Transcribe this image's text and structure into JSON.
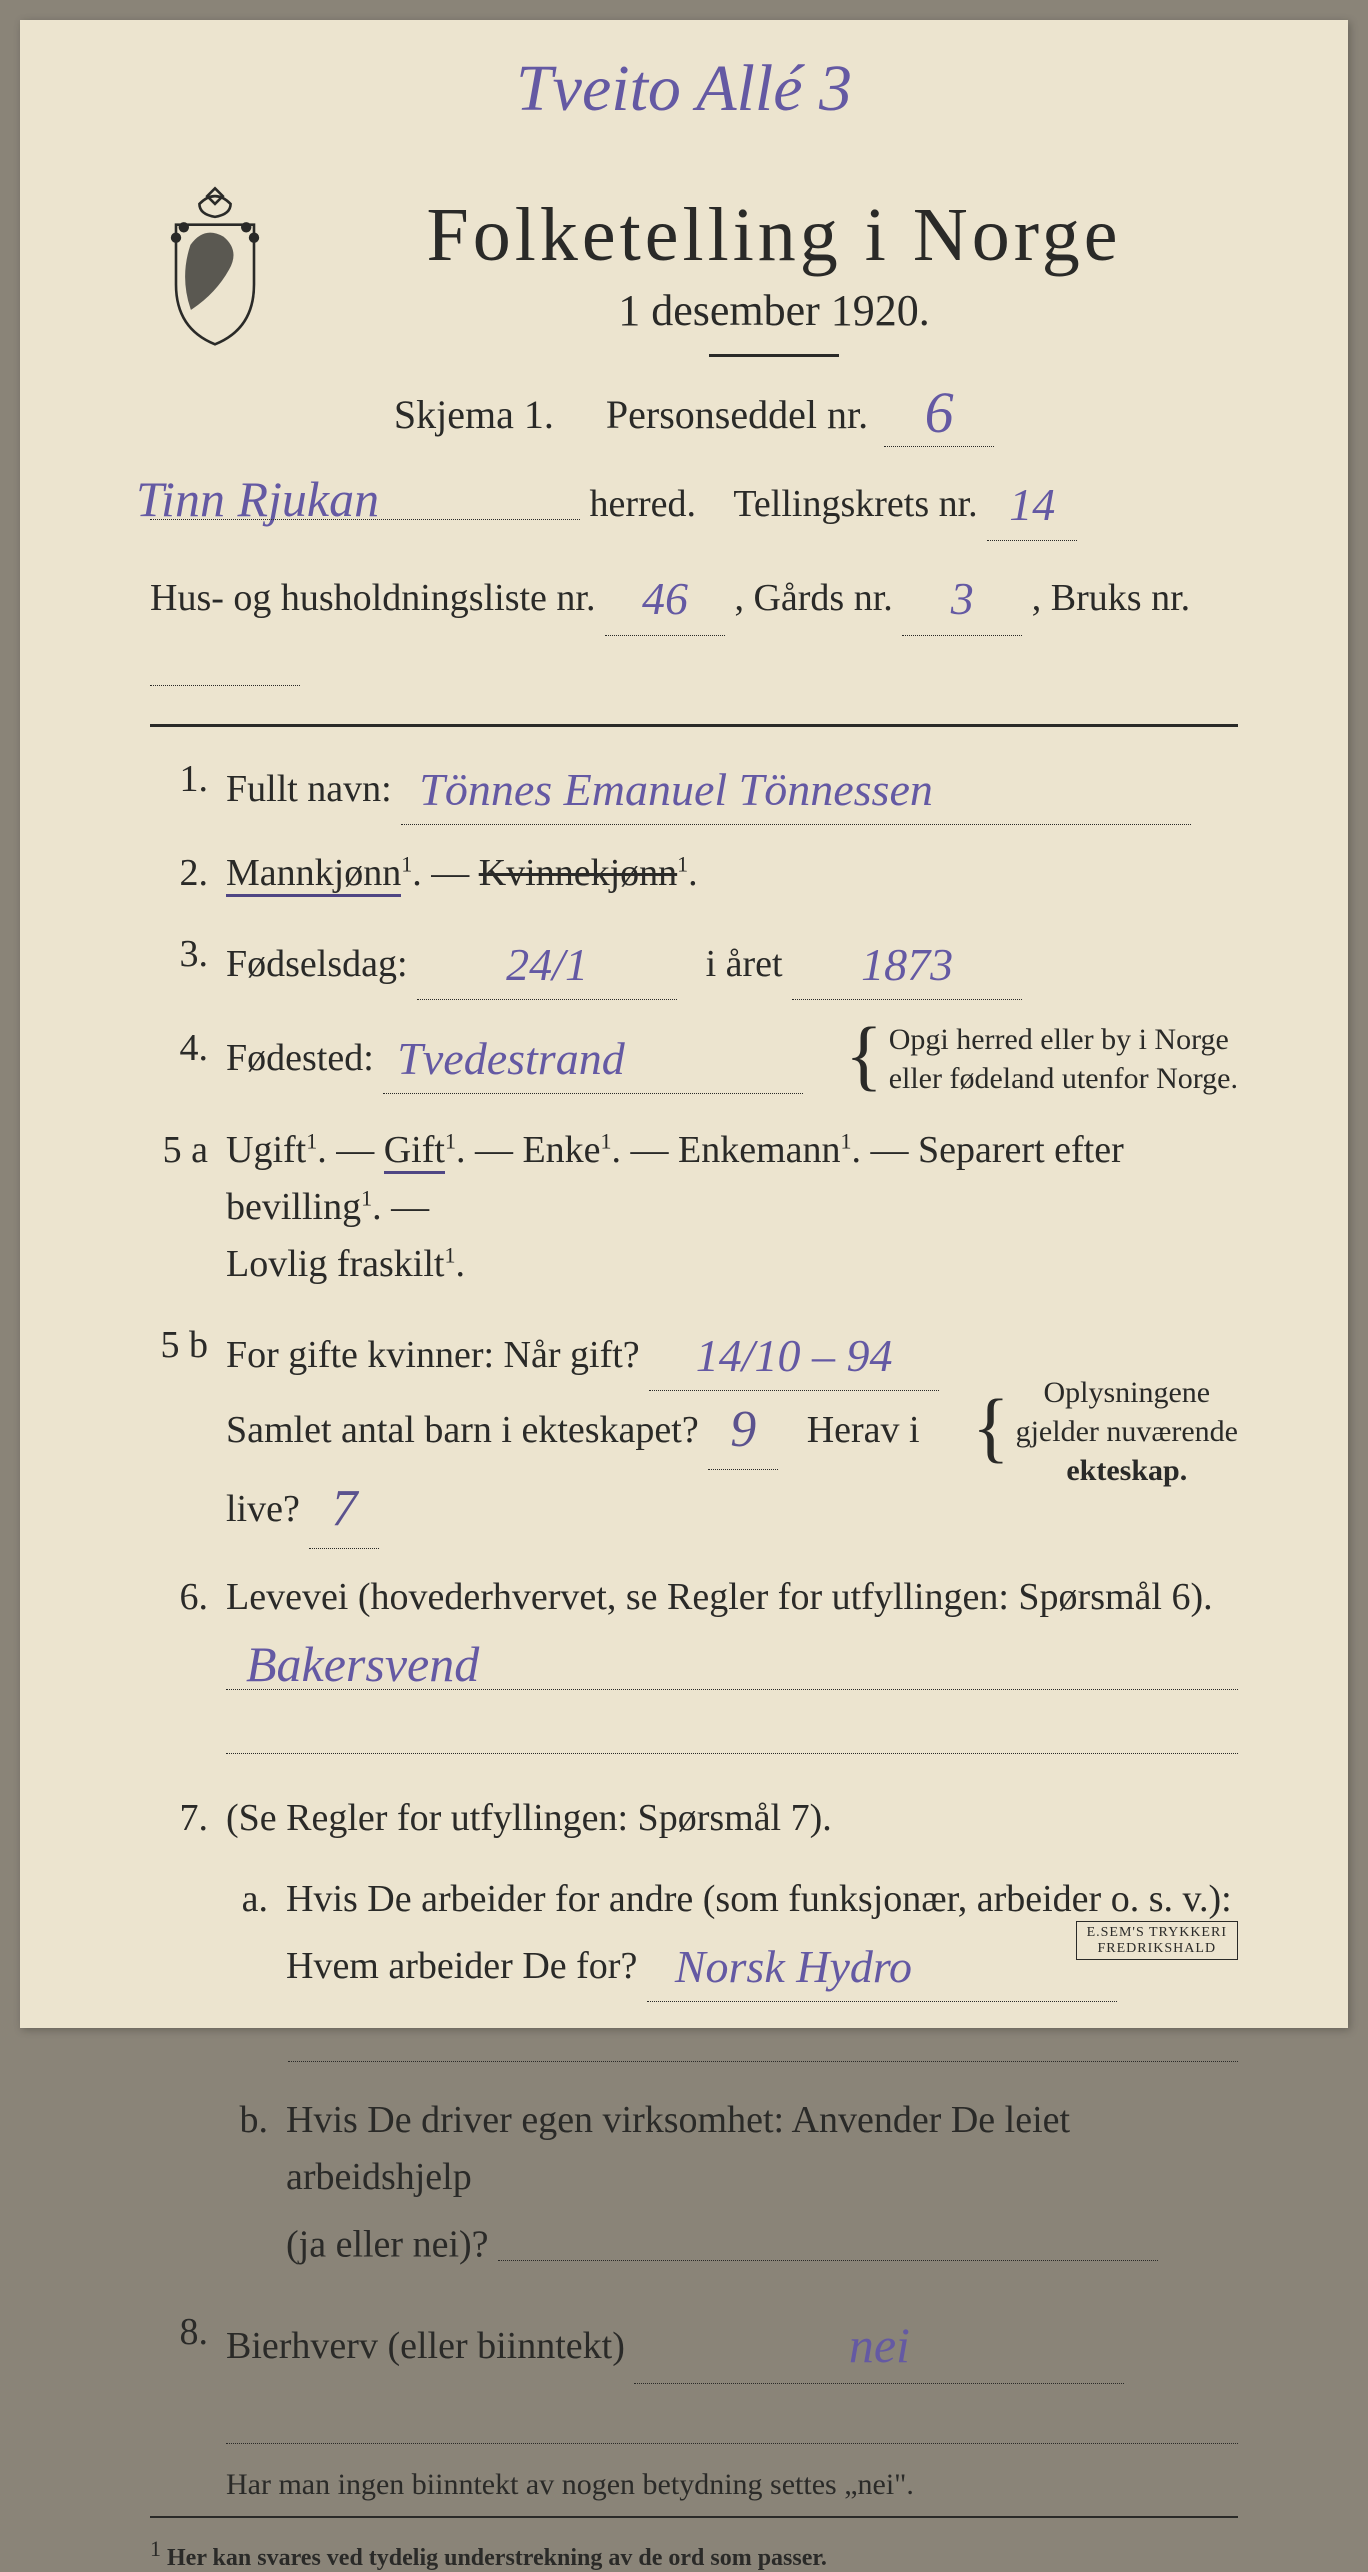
{
  "colors": {
    "paper": "#ece4cf",
    "ink": "#2a2a28",
    "handwriting": "#6459a3",
    "background": "#8a8478"
  },
  "top_annotation": "Tveito Allé 3",
  "title": {
    "main": "Folketelling i Norge",
    "sub": "1 desember 1920."
  },
  "skjema": {
    "label_left": "Skjema 1.",
    "label_right": "Personseddel nr.",
    "value": "6"
  },
  "herred": {
    "value": "Tinn Rjukan",
    "label": "herred.",
    "krets_label": "Tellingskrets nr.",
    "krets_value": "14"
  },
  "hus": {
    "label": "Hus- og husholdningsliste nr.",
    "value": "46",
    "gards_label": ", Gårds nr.",
    "gards_value": "3",
    "bruks_label": ", Bruks nr.",
    "bruks_value": ""
  },
  "q1": {
    "num": "1.",
    "label": "Fullt navn:",
    "value": "Tönnes Emanuel Tönnessen"
  },
  "q2": {
    "num": "2.",
    "label_a": "Mannkjønn",
    "sup": "1",
    "dash": ". — ",
    "label_b": "Kvinnekjønn",
    "end": "."
  },
  "q3": {
    "num": "3.",
    "label_a": "Fødselsdag:",
    "value_a": "24/1",
    "label_b": "i året",
    "value_b": "1873"
  },
  "q4": {
    "num": "4.",
    "label": "Fødested:",
    "value": "Tvedestrand",
    "note_a": "Opgi herred eller by i Norge",
    "note_b": "eller fødeland utenfor Norge."
  },
  "q5a": {
    "num": "5 a",
    "opts": [
      "Ugift",
      "Gift",
      "Enke",
      "Enkemann",
      "Separert efter bevilling",
      "Lovlig fraskilt"
    ],
    "selected_index": 1
  },
  "q5b": {
    "num": "5 b",
    "label_a": "For gifte kvinner:  Når gift?",
    "value_a": "14/10 – 94",
    "label_b": "Samlet antal barn i ekteskapet?",
    "value_b": "9",
    "label_c": "Herav i live?",
    "value_c": "7",
    "note_a": "Oplysningene",
    "note_b": "gjelder nuværende",
    "note_c": "ekteskap."
  },
  "q6": {
    "num": "6.",
    "label": "Levevei (hovederhvervet, se Regler for utfyllingen:  Spørsmål 6).",
    "value": "Bakersvend"
  },
  "q7": {
    "num": "7.",
    "label": "(Se Regler for utfyllingen:  Spørsmål 7).",
    "a_label": "a.",
    "a_text1": "Hvis De arbeider for andre (som funksjonær, arbeider o. s. v.):",
    "a_text2": "Hvem arbeider De for?",
    "a_value": "Norsk Hydro",
    "b_label": "b.",
    "b_text1": "Hvis De driver egen virksomhet:  Anvender De leiet arbeidshjelp",
    "b_text2": "(ja eller nei)?",
    "b_value": ""
  },
  "q8": {
    "num": "8.",
    "label": "Bierhverv (eller biinntekt)",
    "value": "nei"
  },
  "foot1": "Har man ingen biinntekt av nogen betydning settes „nei\".",
  "foot2_sup": "1",
  "foot2": "  Her kan svares ved tydelig understrekning av de ord som passer.",
  "printer": {
    "line1": "E.SEM'S TRYKKERI",
    "line2": "FREDRIKSHALD"
  }
}
